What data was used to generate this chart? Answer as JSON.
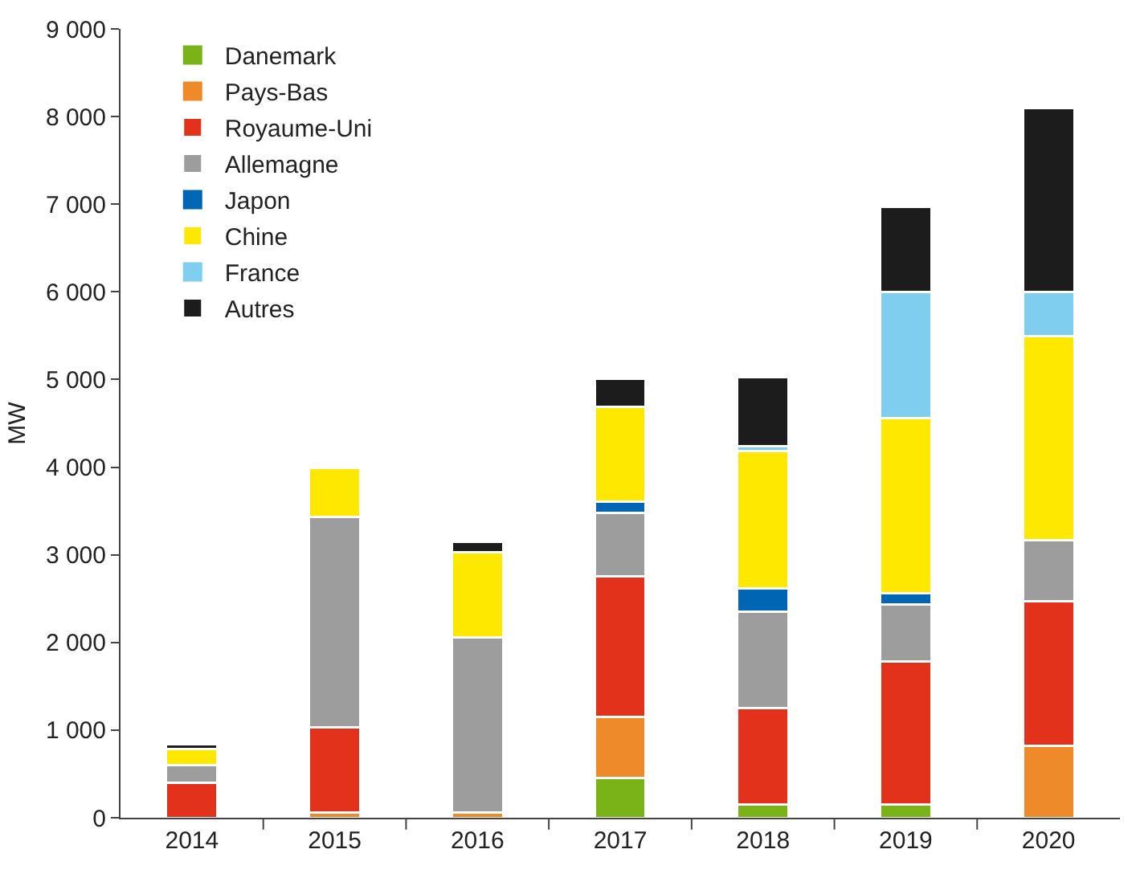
{
  "chart_data": {
    "type": "bar",
    "stacked": true,
    "ylabel": "MW",
    "categories": [
      "2014",
      "2015",
      "2016",
      "2017",
      "2018",
      "2019",
      "2020"
    ],
    "series": [
      {
        "name": "Danemark",
        "color": "#7ab317",
        "values": [
          0,
          0,
          0,
          450,
          150,
          150,
          0
        ]
      },
      {
        "name": "Pays-Bas",
        "color": "#ef8a2a",
        "values": [
          0,
          60,
          60,
          700,
          0,
          0,
          820
        ]
      },
      {
        "name": "Royaume-Uni",
        "color": "#e2321b",
        "values": [
          400,
          970,
          0,
          1600,
          1100,
          1630,
          1650
        ]
      },
      {
        "name": "Allemagne",
        "color": "#9d9d9d",
        "values": [
          200,
          2400,
          2000,
          730,
          1100,
          650,
          700
        ]
      },
      {
        "name": "Japon",
        "color": "#0066b3",
        "values": [
          0,
          0,
          0,
          130,
          270,
          130,
          0
        ]
      },
      {
        "name": "Chine",
        "color": "#ffe800",
        "values": [
          180,
          560,
          970,
          1080,
          1560,
          2000,
          2320
        ]
      },
      {
        "name": "France",
        "color": "#7fcdef",
        "values": [
          0,
          0,
          0,
          0,
          60,
          1440,
          510
        ]
      },
      {
        "name": "Autres",
        "color": "#1c1c1c",
        "values": [
          60,
          0,
          120,
          320,
          790,
          970,
          2100
        ]
      }
    ],
    "ylim": [
      0,
      9000
    ],
    "yticks": [
      0,
      {
        "value": 1000,
        "label": "1 000"
      },
      {
        "value": 2000,
        "label": "2 000"
      },
      {
        "value": 3000,
        "label": "3 000"
      },
      {
        "value": 4000,
        "label": "4 000"
      },
      {
        "value": 5000,
        "label": "5 000"
      },
      {
        "value": 6000,
        "label": "6 000"
      },
      {
        "value": 7000,
        "label": "7 000"
      },
      {
        "value": 8000,
        "label": "8 000"
      },
      {
        "value": 9000,
        "label": "9 000"
      }
    ],
    "grid": false,
    "legend": "top left"
  }
}
